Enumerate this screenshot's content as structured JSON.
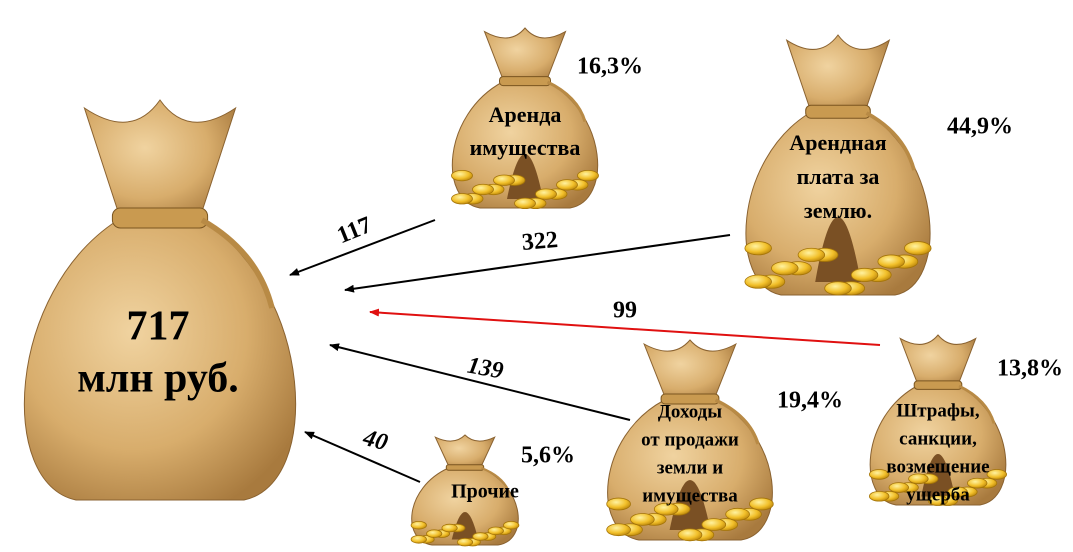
{
  "main": {
    "value": "717",
    "unit": "млн руб."
  },
  "sources": [
    {
      "label_lines": [
        "Аренда",
        "имущества"
      ],
      "percent": "16,3%",
      "amount": "117",
      "arrow_color": "#000000"
    },
    {
      "label_lines": [
        "Арендная",
        "плата за",
        "землю."
      ],
      "percent": "44,9%",
      "amount": "322",
      "arrow_color": "#000000"
    },
    {
      "label_lines": [
        "Штрафы,",
        "санкции,",
        "возмещение",
        "ущерба"
      ],
      "percent": "13,8%",
      "amount": "99",
      "arrow_color": "#e01010"
    },
    {
      "label_lines": [
        "Доходы",
        "от продажи",
        "земли и",
        "имущества"
      ],
      "percent": "19,4%",
      "amount": "139",
      "arrow_color": "#000000"
    },
    {
      "label_lines": [
        "Прочие"
      ],
      "percent": "5,6%",
      "amount": "40",
      "arrow_color": "#000000"
    }
  ]
}
